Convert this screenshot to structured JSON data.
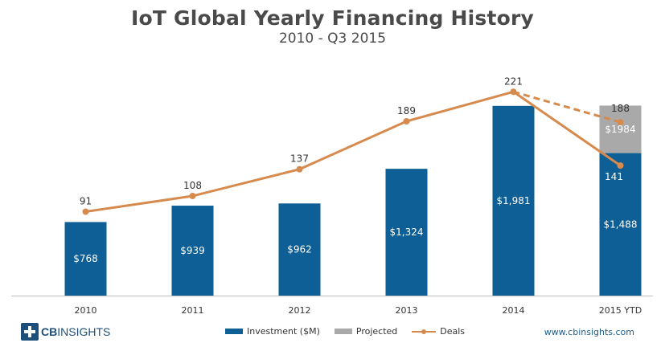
{
  "title": "IoT Global Yearly Financing History",
  "subtitle": "2010 - Q3 2015",
  "colors": {
    "investment": "#0d5f95",
    "projected": "#a9a9a9",
    "deals": "#d68a4e",
    "axis": "#bfbfbf"
  },
  "logo": {
    "brand": "CB",
    "brand_rest": "INSIGHTS"
  },
  "website": "www.cbinsights.com",
  "chart_data": {
    "type": "bar",
    "categories": [
      "2010",
      "2011",
      "2012",
      "2013",
      "2014",
      "2015 YTD"
    ],
    "series": [
      {
        "name": "Investment ($M)",
        "kind": "bar",
        "values": [
          768,
          939,
          962,
          1324,
          1981,
          1488
        ],
        "labels": [
          "$768",
          "$939",
          "$962",
          "$1,324",
          "$1,981",
          "$1,488"
        ]
      },
      {
        "name": "Projected",
        "kind": "stacked-bar",
        "values": [
          null,
          null,
          null,
          null,
          null,
          496
        ],
        "labels": [
          "",
          "",
          "",
          "",
          "",
          "$1984"
        ]
      },
      {
        "name": "Deals",
        "kind": "line",
        "values": [
          91,
          108,
          137,
          189,
          221,
          141
        ],
        "labels": [
          "91",
          "108",
          "137",
          "189",
          "221",
          "141"
        ]
      }
    ],
    "projected_deals": {
      "from_category": "2014",
      "to_category": "2015 YTD",
      "value": 188,
      "label": "188",
      "style": "dashed"
    },
    "legend": [
      "Investment ($M)",
      "Projected",
      "Deals"
    ],
    "bar_ylim": [
      0,
      2600
    ],
    "line_ylim": [
      0,
      270
    ]
  }
}
